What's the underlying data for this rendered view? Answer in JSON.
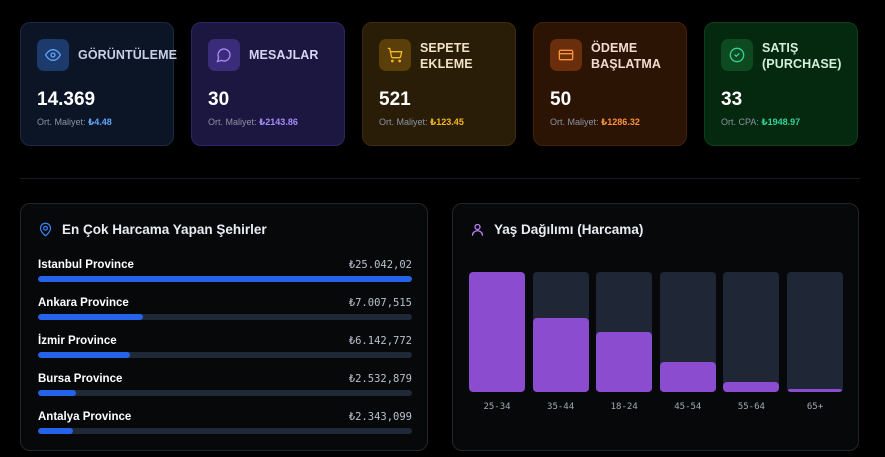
{
  "kpis": [
    {
      "title": "GÖRÜNTÜLEME",
      "value": "14.369",
      "sub_label": "Ort. Maliyet:",
      "sub_value": "₺4.48",
      "icon": "eye-icon",
      "colors": {
        "bg": "#0c1526",
        "border": "#1b2942",
        "icon_bg": "#1c3a6b",
        "accent": "#60a5fa",
        "title": "#c7d2e4"
      }
    },
    {
      "title": "MESAJLAR",
      "value": "30",
      "sub_label": "Ort. Maliyet:",
      "sub_value": "₺2143.86",
      "icon": "message-icon",
      "colors": {
        "bg": "#1b1740",
        "border": "#2c2763",
        "icon_bg": "#3b2c7a",
        "accent": "#a78bfa",
        "title": "#d7d3f3"
      }
    },
    {
      "title": "SEPETE EKLEME",
      "value": "521",
      "sub_label": "Ort. Maliyet:",
      "sub_value": "₺123.45",
      "icon": "cart-icon",
      "colors": {
        "bg": "#2a1d08",
        "border": "#3e2c0d",
        "icon_bg": "#5a3f0b",
        "accent": "#f5b820",
        "title": "#f0e2c4"
      }
    },
    {
      "title": "ÖDEME BAŞLATMA",
      "value": "50",
      "sub_label": "Ort. Maliyet:",
      "sub_value": "₺1286.32",
      "icon": "credit-card-icon",
      "colors": {
        "bg": "#2c1405",
        "border": "#44200a",
        "icon_bg": "#6b2e0c",
        "accent": "#fb923c",
        "title": "#f2dccd"
      }
    },
    {
      "title": "SATIŞ (PURCHASE)",
      "value": "33",
      "sub_label": "Ort. CPA:",
      "sub_value": "₺1948.97",
      "icon": "check-circle-icon",
      "colors": {
        "bg": "#05290f",
        "border": "#0b3f1a",
        "icon_bg": "#0e4a20",
        "accent": "#34d399",
        "title": "#d5efdc"
      }
    }
  ],
  "cities_panel": {
    "title": "En Çok Harcama Yapan Şehirler",
    "icon": "map-pin-icon",
    "items": [
      {
        "name": "Istanbul Province",
        "amount": "₺25.042,02",
        "value": 25042.02
      },
      {
        "name": "Ankara Province",
        "amount": "₺7.007,515",
        "value": 7007.515
      },
      {
        "name": "İzmir Province",
        "amount": "₺6.142,772",
        "value": 6142.772
      },
      {
        "name": "Bursa Province",
        "amount": "₺2.532,879",
        "value": 2532.879
      },
      {
        "name": "Antalya Province",
        "amount": "₺2.343,099",
        "value": 2343.099
      }
    ]
  },
  "age_panel": {
    "title": "Yaş Dağılımı (Harcama)",
    "icon": "user-icon",
    "bars": [
      {
        "label": "25-34",
        "share": 1.0
      },
      {
        "label": "35-44",
        "share": 0.62
      },
      {
        "label": "18-24",
        "share": 0.5
      },
      {
        "label": "45-54",
        "share": 0.25
      },
      {
        "label": "55-64",
        "share": 0.08
      },
      {
        "label": "65+",
        "share": 0.025
      }
    ]
  }
}
